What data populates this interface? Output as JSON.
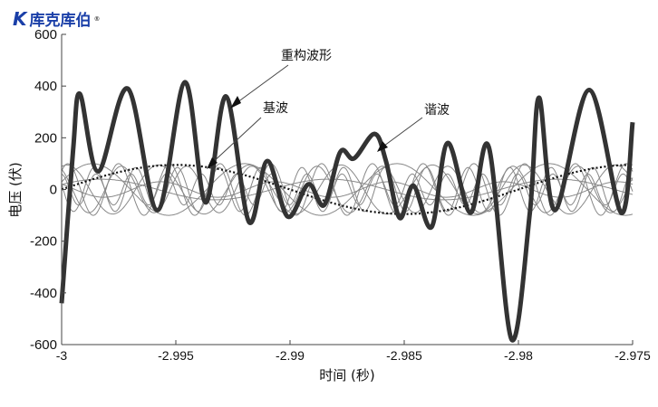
{
  "logo": {
    "text": "库克库伯",
    "mark": "K",
    "registered": "®"
  },
  "chart_data": {
    "type": "line",
    "xlabel": "时间 (秒)",
    "ylabel": "电压 (伏)",
    "xlim": [
      -3,
      -2.975
    ],
    "ylim": [
      -600,
      600
    ],
    "xticks": [
      -3,
      -2.995,
      -2.99,
      -2.985,
      -2.98,
      -2.975
    ],
    "xtick_labels": [
      "-3",
      "-2.995",
      "-2.99",
      "-2.985",
      "-2.98",
      "-2.975"
    ],
    "yticks": [
      -600,
      -400,
      -200,
      0,
      200,
      400,
      600
    ],
    "ytick_labels": [
      "-600",
      "-400",
      "-200",
      "0",
      "200",
      "400",
      "600"
    ],
    "grid": false,
    "reconstructed": {
      "label": "重构波形",
      "color": "#333333",
      "x": [
        -3,
        -2.9995,
        -2.9992,
        -2.9984,
        -2.9971,
        -2.9958,
        -2.9946,
        -2.9937,
        -2.9928,
        -2.9918,
        -2.991,
        -2.9901,
        -2.9892,
        -2.9885,
        -2.9878,
        -2.9872,
        -2.9863,
        -2.9858,
        -2.9852,
        -2.9846,
        -2.9838,
        -2.9831,
        -2.9821,
        -2.9813,
        -2.9803,
        -2.9795,
        -2.9791,
        -2.9784,
        -2.9769,
        -2.9755,
        -2.975
      ],
      "y": [
        -440,
        150,
        370,
        70,
        390,
        -80,
        415,
        -50,
        360,
        -125,
        110,
        -105,
        20,
        -60,
        145,
        120,
        215,
        110,
        -110,
        15,
        -145,
        180,
        -90,
        165,
        -580,
        -90,
        355,
        -80,
        385,
        -90,
        260
      ]
    },
    "fundamental": {
      "label": "基波",
      "amplitude": 95,
      "frequency": 50,
      "style": "dotted"
    },
    "harmonics": {
      "label": "谐波",
      "color": "#888888",
      "components": [
        {
          "amplitude": 100,
          "frequency": 150,
          "phase": 0.3
        },
        {
          "amplitude": 95,
          "frequency": 250,
          "phase": 1.2
        },
        {
          "amplitude": 90,
          "frequency": 350,
          "phase": 2.1
        },
        {
          "amplitude": 100,
          "frequency": 450,
          "phase": 0.8
        },
        {
          "amplitude": 85,
          "frequency": 550,
          "phase": 2.9
        },
        {
          "amplitude": 60,
          "frequency": 650,
          "phase": 1.7
        },
        {
          "amplitude": 40,
          "frequency": 100,
          "phase": 0.5
        },
        {
          "amplitude": 30,
          "frequency": 200,
          "phase": 2.4
        }
      ]
    }
  }
}
